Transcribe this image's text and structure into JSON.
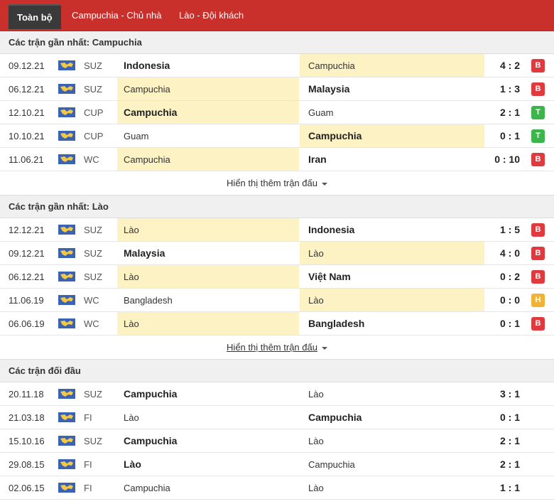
{
  "tabs": [
    {
      "label": "Toàn bộ"
    },
    {
      "label": "Campuchia - Chủ nhà"
    },
    {
      "label": "Lào - Đội khách"
    }
  ],
  "sections": [
    {
      "title": "Các trận gần nhất: Campuchia",
      "more": "Hiển thị thêm trận đấu",
      "rows": [
        {
          "date": "09.12.21",
          "league": "SUZ",
          "home": "Indonesia",
          "away": "Campuchia",
          "score": "4 : 2",
          "result": "B",
          "hl": "away",
          "bold": "home"
        },
        {
          "date": "06.12.21",
          "league": "SUZ",
          "home": "Campuchia",
          "away": "Malaysia",
          "score": "1 : 3",
          "result": "B",
          "hl": "home",
          "bold": "away"
        },
        {
          "date": "12.10.21",
          "league": "CUP",
          "home": "Campuchia",
          "away": "Guam",
          "score": "2 : 1",
          "result": "T",
          "hl": "home",
          "bold": "home"
        },
        {
          "date": "10.10.21",
          "league": "CUP",
          "home": "Guam",
          "away": "Campuchia",
          "score": "0 : 1",
          "result": "T",
          "hl": "away",
          "bold": "away"
        },
        {
          "date": "11.06.21",
          "league": "WC",
          "home": "Campuchia",
          "away": "Iran",
          "score": "0 : 10",
          "result": "B",
          "hl": "home",
          "bold": "away"
        }
      ]
    },
    {
      "title": "Các trận gần nhất: Lào",
      "more": "Hiển thị thêm trận đấu",
      "rows": [
        {
          "date": "12.12.21",
          "league": "SUZ",
          "home": "Lào",
          "away": "Indonesia",
          "score": "1 : 5",
          "result": "B",
          "hl": "home",
          "bold": "away"
        },
        {
          "date": "09.12.21",
          "league": "SUZ",
          "home": "Malaysia",
          "away": "Lào",
          "score": "4 : 0",
          "result": "B",
          "hl": "away",
          "bold": "home"
        },
        {
          "date": "06.12.21",
          "league": "SUZ",
          "home": "Lào",
          "away": "Việt Nam",
          "score": "0 : 2",
          "result": "B",
          "hl": "home",
          "bold": "away"
        },
        {
          "date": "11.06.19",
          "league": "WC",
          "home": "Bangladesh",
          "away": "Lào",
          "score": "0 : 0",
          "result": "H",
          "hl": "away",
          "bold": ""
        },
        {
          "date": "06.06.19",
          "league": "WC",
          "home": "Lào",
          "away": "Bangladesh",
          "score": "0 : 1",
          "result": "B",
          "hl": "home",
          "bold": "away"
        }
      ]
    },
    {
      "title": "Các trận đối đầu",
      "more": "",
      "rows": [
        {
          "date": "20.11.18",
          "league": "SUZ",
          "home": "Campuchia",
          "away": "Lào",
          "score": "3 : 1",
          "result": "",
          "hl": "",
          "bold": "home"
        },
        {
          "date": "21.03.18",
          "league": "FI",
          "home": "Lào",
          "away": "Campuchia",
          "score": "0 : 1",
          "result": "",
          "hl": "",
          "bold": "away"
        },
        {
          "date": "15.10.16",
          "league": "SUZ",
          "home": "Campuchia",
          "away": "Lào",
          "score": "2 : 1",
          "result": "",
          "hl": "",
          "bold": "home"
        },
        {
          "date": "29.08.15",
          "league": "FI",
          "home": "Lào",
          "away": "Campuchia",
          "score": "2 : 1",
          "result": "",
          "hl": "",
          "bold": "home"
        },
        {
          "date": "02.06.15",
          "league": "FI",
          "home": "Campuchia",
          "away": "Lào",
          "score": "1 : 1",
          "result": "",
          "hl": "",
          "bold": ""
        }
      ]
    }
  ],
  "colors": {
    "header_red": "#c9302c",
    "highlight": "#fdf2c4",
    "lose": "#e0393e",
    "win": "#3cb54a",
    "draw": "#f2b233"
  }
}
